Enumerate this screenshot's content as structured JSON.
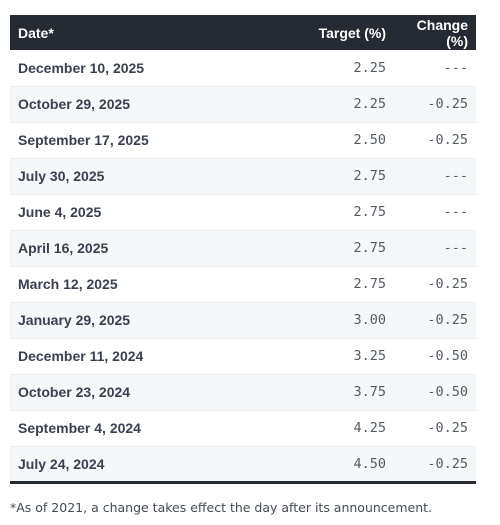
{
  "table": {
    "headers": {
      "date": "Date*",
      "target": "Target (%)",
      "change": "Change (%)"
    },
    "rows": [
      {
        "date": "December 10, 2025",
        "target": "2.25",
        "change": "---"
      },
      {
        "date": "October 29, 2025",
        "target": "2.25",
        "change": "-0.25"
      },
      {
        "date": "September 17, 2025",
        "target": "2.50",
        "change": "-0.25"
      },
      {
        "date": "July 30, 2025",
        "target": "2.75",
        "change": "---"
      },
      {
        "date": "June 4, 2025",
        "target": "2.75",
        "change": "---"
      },
      {
        "date": "April 16, 2025",
        "target": "2.75",
        "change": "---"
      },
      {
        "date": "March 12, 2025",
        "target": "2.75",
        "change": "-0.25"
      },
      {
        "date": "January 29, 2025",
        "target": "3.00",
        "change": "-0.25"
      },
      {
        "date": "December 11, 2024",
        "target": "3.25",
        "change": "-0.50"
      },
      {
        "date": "October 23, 2024",
        "target": "3.75",
        "change": "-0.50"
      },
      {
        "date": "September 4, 2024",
        "target": "4.25",
        "change": "-0.25"
      },
      {
        "date": "July 24, 2024",
        "target": "4.50",
        "change": "-0.25"
      }
    ]
  },
  "footnote": "*As of 2021, a change takes effect the day after its announcement.",
  "colors": {
    "header_bg": "#262a33",
    "header_text": "#ffffff",
    "row_alt_bg": "#f6f7f9"
  }
}
